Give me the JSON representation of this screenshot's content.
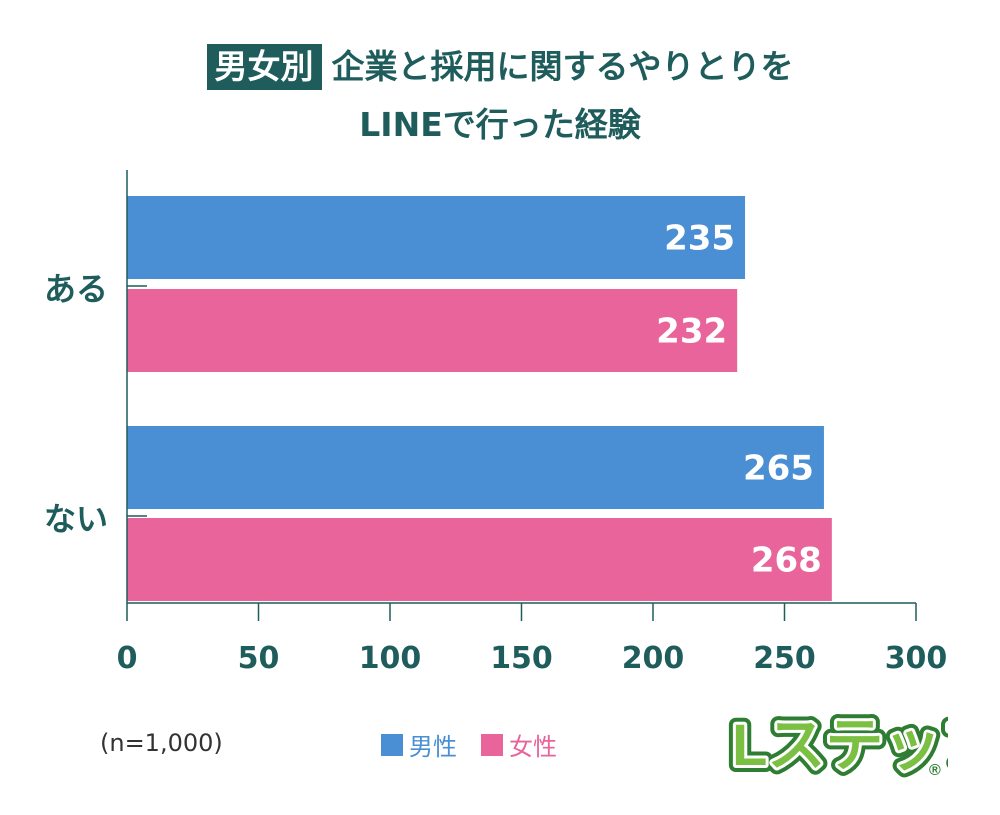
{
  "title": {
    "badge": "男女別",
    "line1": "企業と採用に関するやりとりを",
    "line2": "LINEで行った経験"
  },
  "colors": {
    "title": "#1f5c5c",
    "male": "#4a8fd4",
    "female": "#e8649a",
    "axis": "#1f5c5c"
  },
  "chart_data": {
    "type": "bar",
    "orientation": "horizontal",
    "categories": [
      "ある",
      "ない"
    ],
    "series": [
      {
        "name": "男性",
        "color": "#4a8fd4",
        "values": [
          235,
          265
        ]
      },
      {
        "name": "女性",
        "color": "#e8649a",
        "values": [
          232,
          268
        ]
      }
    ],
    "xlim": [
      0,
      300
    ],
    "xticks": [
      0,
      50,
      100,
      150,
      200,
      250,
      300
    ],
    "grid": false,
    "legend": "bottom-center"
  },
  "note": "(n=1,000)",
  "brand": {
    "text": "Lステップ",
    "mark": "®",
    "logo": "lstep-logo"
  }
}
